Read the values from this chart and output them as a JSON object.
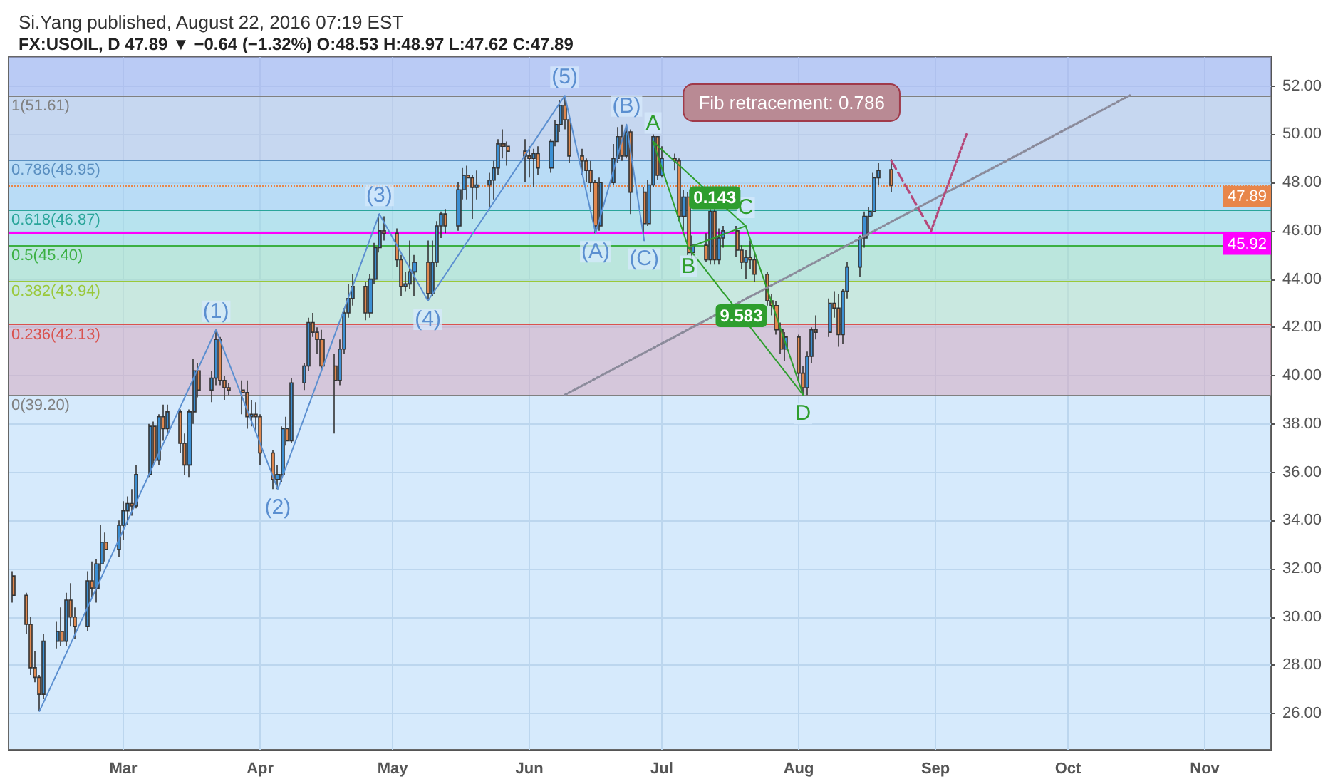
{
  "chart_data": {
    "type": "candlestick",
    "title": "Si.Yang published, August 22, 2016 07:19 EST",
    "subtitle": "FX:USOIL, D 47.89 ▼ −0.64 (−1.32%) O:48.53 H:48.97 L:47.62 C:47.89",
    "xlim": [
      "2016-02-04",
      "2016-11-16"
    ],
    "xticks": [
      {
        "value": "2016-03-01",
        "label": "Mar"
      },
      {
        "value": "2016-04-01",
        "label": "Apr"
      },
      {
        "value": "2016-05-01",
        "label": "May"
      },
      {
        "value": "2016-06-01",
        "label": "Jun"
      },
      {
        "value": "2016-07-01",
        "label": "Jul"
      },
      {
        "value": "2016-08-01",
        "label": "Aug"
      },
      {
        "value": "2016-09-01",
        "label": "Sep"
      },
      {
        "value": "2016-10-01",
        "label": "Oct"
      },
      {
        "value": "2016-11-01",
        "label": "Nov"
      }
    ],
    "ylim": [
      24.5,
      53.2
    ],
    "yticks": [
      {
        "value": 26,
        "label": "26.00"
      },
      {
        "value": 28,
        "label": "28.00"
      },
      {
        "value": 30,
        "label": "30.00"
      },
      {
        "value": 32,
        "label": "32.00"
      },
      {
        "value": 34,
        "label": "34.00"
      },
      {
        "value": 36,
        "label": "36.00"
      },
      {
        "value": 38,
        "label": "38.00"
      },
      {
        "value": 40,
        "label": "40.00"
      },
      {
        "value": 42,
        "label": "42.00"
      },
      {
        "value": 44,
        "label": "44.00"
      },
      {
        "value": 46,
        "label": "46.00"
      },
      {
        "value": 48,
        "label": "48.00"
      },
      {
        "value": 50,
        "label": "50.00"
      },
      {
        "value": 52,
        "label": "52.00"
      }
    ],
    "grid": true,
    "series": [
      {
        "x": [
          "2016-02-05",
          "2016-02-08",
          "2016-02-09",
          "2016-02-10",
          "2016-02-11",
          "2016-02-12",
          "2016-02-15",
          "2016-02-16",
          "2016-02-17",
          "2016-02-18",
          "2016-02-19",
          "2016-02-22",
          "2016-02-23",
          "2016-02-24",
          "2016-02-25",
          "2016-02-26",
          "2016-02-29",
          "2016-03-01",
          "2016-03-02",
          "2016-03-03",
          "2016-03-04",
          "2016-03-07",
          "2016-03-08",
          "2016-03-09",
          "2016-03-10",
          "2016-03-11",
          "2016-03-14",
          "2016-03-15",
          "2016-03-16",
          "2016-03-17",
          "2016-03-18",
          "2016-03-21",
          "2016-03-22",
          "2016-03-23",
          "2016-03-24",
          "2016-03-25",
          "2016-03-28",
          "2016-03-29",
          "2016-03-30",
          "2016-03-31",
          "2016-04-01",
          "2016-04-04",
          "2016-04-05",
          "2016-04-06",
          "2016-04-07",
          "2016-04-08",
          "2016-04-11",
          "2016-04-12",
          "2016-04-13",
          "2016-04-14",
          "2016-04-15",
          "2016-04-18",
          "2016-04-19",
          "2016-04-20",
          "2016-04-21",
          "2016-04-22",
          "2016-04-25",
          "2016-04-26",
          "2016-04-27",
          "2016-04-28",
          "2016-04-29",
          "2016-05-02",
          "2016-05-03",
          "2016-05-04",
          "2016-05-05",
          "2016-05-06",
          "2016-05-09",
          "2016-05-10",
          "2016-05-11",
          "2016-05-12",
          "2016-05-13",
          "2016-05-16",
          "2016-05-17",
          "2016-05-18",
          "2016-05-19",
          "2016-05-20",
          "2016-05-23",
          "2016-05-24",
          "2016-05-25",
          "2016-05-26",
          "2016-05-27",
          "2016-05-31",
          "2016-06-01",
          "2016-06-02",
          "2016-06-03",
          "2016-06-06",
          "2016-06-07",
          "2016-06-08",
          "2016-06-09",
          "2016-06-10",
          "2016-06-13",
          "2016-06-14",
          "2016-06-15",
          "2016-06-16",
          "2016-06-17",
          "2016-06-20",
          "2016-06-21",
          "2016-06-22",
          "2016-06-23",
          "2016-06-24",
          "2016-06-27",
          "2016-06-28",
          "2016-06-29",
          "2016-06-30",
          "2016-07-01",
          "2016-07-04",
          "2016-07-05",
          "2016-07-06",
          "2016-07-07",
          "2016-07-08",
          "2016-07-11",
          "2016-07-12",
          "2016-07-13",
          "2016-07-14",
          "2016-07-15",
          "2016-07-18",
          "2016-07-19",
          "2016-07-20",
          "2016-07-21",
          "2016-07-22",
          "2016-07-25",
          "2016-07-26",
          "2016-07-27",
          "2016-07-28",
          "2016-07-29",
          "2016-08-01",
          "2016-08-02",
          "2016-08-03",
          "2016-08-04",
          "2016-08-05",
          "2016-08-08",
          "2016-08-09",
          "2016-08-10",
          "2016-08-11",
          "2016-08-12",
          "2016-08-15",
          "2016-08-16",
          "2016-08-17",
          "2016-08-18",
          "2016-08-19",
          "2016-08-22"
        ],
        "ohlc": [
          [
            31.7,
            31.9,
            30.6,
            30.9
          ],
          [
            30.9,
            31.0,
            29.3,
            29.7
          ],
          [
            29.7,
            30.0,
            27.6,
            27.9
          ],
          [
            27.9,
            28.6,
            27.3,
            27.5
          ],
          [
            27.5,
            27.6,
            26.1,
            26.8
          ],
          [
            26.8,
            29.3,
            26.6,
            29.0
          ],
          [
            29.0,
            29.8,
            28.7,
            29.4
          ],
          [
            29.4,
            30.4,
            28.8,
            29.0
          ],
          [
            29.0,
            31.0,
            28.8,
            30.7
          ],
          [
            30.7,
            31.4,
            29.6,
            30.0
          ],
          [
            30.0,
            30.4,
            29.1,
            29.6
          ],
          [
            29.6,
            31.9,
            29.4,
            31.5
          ],
          [
            31.5,
            32.3,
            30.8,
            31.2
          ],
          [
            31.2,
            32.4,
            30.6,
            32.2
          ],
          [
            32.2,
            33.8,
            31.9,
            33.1
          ],
          [
            33.1,
            33.5,
            32.3,
            32.8
          ],
          [
            32.8,
            34.0,
            32.5,
            33.8
          ],
          [
            33.8,
            34.8,
            33.2,
            34.4
          ],
          [
            34.4,
            35.0,
            33.8,
            34.7
          ],
          [
            34.7,
            35.3,
            34.2,
            34.6
          ],
          [
            34.6,
            36.3,
            34.5,
            35.9
          ],
          [
            35.9,
            38.0,
            35.8,
            37.9
          ],
          [
            37.9,
            38.1,
            36.3,
            36.5
          ],
          [
            36.5,
            38.4,
            36.3,
            38.3
          ],
          [
            38.3,
            38.8,
            37.3,
            37.8
          ],
          [
            37.8,
            38.8,
            37.5,
            38.5
          ],
          [
            38.5,
            38.6,
            36.8,
            37.2
          ],
          [
            37.2,
            37.6,
            35.9,
            36.3
          ],
          [
            36.3,
            38.6,
            35.8,
            38.5
          ],
          [
            38.5,
            40.7,
            38.0,
            40.2
          ],
          [
            40.2,
            40.5,
            39.1,
            39.4
          ],
          [
            39.4,
            40.2,
            38.9,
            39.9
          ],
          [
            39.9,
            41.9,
            39.6,
            41.5
          ],
          [
            41.5,
            41.6,
            39.6,
            39.8
          ],
          [
            39.8,
            40.0,
            39.0,
            39.5
          ],
          [
            39.5,
            39.7,
            39.2,
            39.4
          ],
          [
            39.4,
            39.8,
            38.4,
            39.3
          ],
          [
            39.3,
            39.8,
            37.8,
            38.3
          ],
          [
            38.3,
            39.0,
            37.9,
            38.4
          ],
          [
            38.4,
            38.9,
            37.7,
            38.3
          ],
          [
            38.3,
            38.4,
            36.3,
            36.8
          ],
          [
            36.8,
            36.9,
            35.3,
            35.7
          ],
          [
            35.7,
            36.3,
            35.3,
            35.9
          ],
          [
            35.9,
            37.9,
            35.6,
            37.8
          ],
          [
            37.8,
            38.3,
            37.1,
            37.3
          ],
          [
            37.3,
            39.9,
            37.2,
            39.7
          ],
          [
            39.7,
            40.5,
            39.4,
            40.4
          ],
          [
            40.4,
            42.4,
            40.2,
            42.2
          ],
          [
            42.2,
            42.6,
            41.6,
            41.8
          ],
          [
            41.8,
            42.0,
            40.9,
            41.5
          ],
          [
            41.5,
            41.9,
            40.2,
            40.4
          ],
          [
            40.4,
            40.9,
            37.6,
            39.8
          ],
          [
            39.8,
            41.5,
            39.6,
            41.1
          ],
          [
            41.1,
            42.8,
            40.9,
            42.6
          ],
          [
            42.6,
            43.8,
            42.4,
            43.2
          ],
          [
            43.2,
            44.2,
            42.9,
            43.7
          ],
          [
            43.7,
            43.9,
            42.3,
            42.6
          ],
          [
            42.6,
            44.2,
            42.4,
            44.0
          ],
          [
            44.0,
            45.5,
            43.8,
            45.3
          ],
          [
            45.3,
            46.7,
            45.1,
            46.0
          ],
          [
            46.0,
            46.6,
            45.6,
            45.9
          ],
          [
            45.9,
            46.1,
            44.5,
            44.8
          ],
          [
            44.8,
            45.0,
            43.3,
            43.7
          ],
          [
            43.7,
            44.3,
            43.5,
            43.8
          ],
          [
            43.8,
            45.6,
            43.6,
            44.3
          ],
          [
            44.3,
            45.0,
            43.3,
            44.7
          ],
          [
            44.7,
            45.6,
            43.1,
            43.4
          ],
          [
            43.4,
            45.6,
            43.3,
            44.7
          ],
          [
            44.7,
            46.4,
            44.5,
            46.2
          ],
          [
            46.2,
            46.8,
            45.7,
            46.7
          ],
          [
            46.7,
            46.9,
            45.9,
            46.2
          ],
          [
            46.2,
            48.0,
            46.0,
            47.7
          ],
          [
            47.7,
            48.6,
            47.3,
            48.3
          ],
          [
            48.3,
            48.7,
            47.3,
            48.2
          ],
          [
            48.2,
            48.3,
            46.5,
            47.8
          ],
          [
            47.8,
            48.5,
            47.3,
            47.9
          ],
          [
            47.9,
            48.4,
            47.0,
            48.1
          ],
          [
            48.1,
            48.9,
            47.3,
            48.6
          ],
          [
            48.6,
            49.8,
            48.3,
            49.6
          ],
          [
            49.6,
            50.2,
            49.0,
            49.5
          ],
          [
            49.5,
            49.7,
            48.7,
            49.3
          ],
          [
            49.3,
            49.8,
            48.0,
            49.1
          ],
          [
            49.1,
            49.5,
            48.2,
            49.0
          ],
          [
            49.0,
            49.4,
            47.8,
            49.2
          ],
          [
            49.2,
            49.5,
            48.3,
            48.6
          ],
          [
            48.6,
            49.8,
            48.4,
            49.7
          ],
          [
            49.7,
            50.6,
            49.5,
            50.4
          ],
          [
            50.4,
            51.4,
            50.1,
            51.2
          ],
          [
            51.2,
            51.6,
            50.2,
            50.6
          ],
          [
            50.6,
            50.6,
            48.8,
            49.1
          ],
          [
            49.1,
            49.4,
            48.3,
            48.9
          ],
          [
            48.9,
            49.0,
            48.0,
            48.5
          ],
          [
            48.5,
            48.9,
            47.6,
            48.0
          ],
          [
            48.0,
            48.1,
            45.9,
            46.2
          ],
          [
            46.2,
            48.2,
            46.0,
            48.0
          ],
          [
            48.0,
            49.6,
            47.9,
            49.0
          ],
          [
            49.0,
            50.3,
            48.8,
            49.9
          ],
          [
            49.9,
            50.4,
            48.9,
            49.1
          ],
          [
            49.1,
            50.3,
            49.0,
            50.1
          ],
          [
            50.1,
            50.2,
            46.7,
            47.6
          ],
          [
            47.6,
            47.8,
            45.6,
            46.3
          ],
          [
            46.3,
            48.1,
            46.2,
            47.9
          ],
          [
            47.9,
            50.0,
            47.8,
            49.9
          ],
          [
            49.9,
            49.9,
            48.1,
            48.3
          ],
          [
            48.3,
            49.5,
            48.2,
            49.0
          ],
          [
            49.0,
            49.2,
            48.5,
            48.9
          ],
          [
            48.9,
            49.0,
            46.4,
            46.6
          ],
          [
            46.6,
            47.7,
            46.0,
            47.4
          ],
          [
            47.4,
            47.6,
            45.0,
            45.1
          ],
          [
            45.1,
            45.8,
            44.8,
            45.4
          ],
          [
            45.4,
            45.9,
            44.7,
            44.8
          ],
          [
            44.8,
            46.9,
            44.6,
            46.8
          ],
          [
            46.8,
            46.9,
            44.6,
            44.8
          ],
          [
            44.8,
            46.1,
            44.6,
            45.7
          ],
          [
            45.7,
            46.2,
            45.3,
            46.0
          ],
          [
            46.0,
            46.2,
            44.9,
            45.2
          ],
          [
            45.2,
            45.4,
            44.4,
            44.7
          ],
          [
            44.7,
            45.2,
            44.0,
            44.9
          ],
          [
            44.9,
            45.6,
            44.4,
            44.8
          ],
          [
            44.8,
            45.1,
            43.9,
            44.2
          ],
          [
            44.2,
            44.3,
            42.9,
            43.1
          ],
          [
            43.1,
            43.4,
            42.5,
            42.9
          ],
          [
            42.9,
            43.1,
            41.7,
            41.9
          ],
          [
            41.9,
            42.2,
            40.9,
            41.1
          ],
          [
            41.1,
            41.8,
            40.6,
            41.6
          ],
          [
            41.6,
            41.7,
            39.8,
            40.1
          ],
          [
            40.1,
            40.4,
            39.2,
            39.5
          ],
          [
            39.5,
            41.0,
            39.2,
            40.8
          ],
          [
            40.8,
            42.0,
            40.5,
            41.9
          ],
          [
            41.9,
            42.5,
            41.5,
            41.8
          ],
          [
            41.8,
            43.2,
            41.6,
            43.0
          ],
          [
            43.0,
            43.5,
            42.4,
            42.8
          ],
          [
            42.8,
            43.4,
            41.2,
            41.7
          ],
          [
            41.7,
            43.6,
            41.3,
            43.5
          ],
          [
            43.5,
            44.7,
            43.2,
            44.5
          ],
          [
            44.5,
            45.8,
            44.1,
            45.7
          ],
          [
            45.7,
            46.8,
            45.3,
            46.6
          ],
          [
            46.6,
            47.0,
            45.8,
            46.8
          ],
          [
            46.8,
            48.4,
            46.6,
            48.2
          ],
          [
            48.2,
            48.8,
            47.9,
            48.5
          ],
          [
            48.53,
            48.97,
            47.62,
            47.89
          ]
        ],
        "colors": [
          "#e0884f",
          "#e0884f",
          "#e0884f",
          "#e0884f",
          "#e0884f",
          "#3c8fd3",
          "#3c8fd3",
          "#e0884f",
          "#3c8fd3",
          "#e0884f",
          "#e0884f",
          "#3c8fd3",
          "#e0884f",
          "#3c8fd3",
          "#3c8fd3",
          "#e0884f",
          "#3c8fd3",
          "#3c8fd3",
          "#3c8fd3",
          "#e0884f",
          "#3c8fd3",
          "#3c8fd3",
          "#e0884f",
          "#3c8fd3",
          "#e0884f",
          "#3c8fd3",
          "#e0884f",
          "#e0884f",
          "#3c8fd3",
          "#3c8fd3",
          "#e0884f",
          "#3c8fd3",
          "#3c8fd3",
          "#e0884f",
          "#e0884f",
          "#e0884f",
          "#e0884f",
          "#e0884f",
          "#3c8fd3",
          "#e0884f",
          "#e0884f",
          "#e0884f",
          "#3c8fd3",
          "#3c8fd3",
          "#e0884f",
          "#3c8fd3",
          "#3c8fd3",
          "#3c8fd3",
          "#e0884f",
          "#e0884f",
          "#e0884f",
          "#e0884f",
          "#3c8fd3",
          "#3c8fd3",
          "#3c8fd3",
          "#3c8fd3",
          "#e0884f",
          "#3c8fd3",
          "#3c8fd3",
          "#3c8fd3",
          "#e0884f",
          "#e0884f",
          "#e0884f",
          "#3c8fd3",
          "#3c8fd3",
          "#3c8fd3",
          "#e0884f",
          "#3c8fd3",
          "#3c8fd3",
          "#3c8fd3",
          "#e0884f",
          "#3c8fd3",
          "#3c8fd3",
          "#e0884f",
          "#e0884f",
          "#3c8fd3",
          "#3c8fd3",
          "#3c8fd3",
          "#3c8fd3",
          "#e0884f",
          "#e0884f",
          "#e0884f",
          "#e0884f",
          "#3c8fd3",
          "#e0884f",
          "#3c8fd3",
          "#3c8fd3",
          "#3c8fd3",
          "#e0884f",
          "#e0884f",
          "#e0884f",
          "#e0884f",
          "#e0884f",
          "#e0884f",
          "#3c8fd3",
          "#3c8fd3",
          "#3c8fd3",
          "#e0884f",
          "#3c8fd3",
          "#e0884f",
          "#e0884f",
          "#3c8fd3",
          "#3c8fd3",
          "#e0884f",
          "#3c8fd3",
          "#e0884f",
          "#e0884f",
          "#3c8fd3",
          "#e0884f",
          "#3c8fd3",
          "#e0884f",
          "#3c8fd3",
          "#e0884f",
          "#3c8fd3",
          "#3c8fd3",
          "#e0884f",
          "#e0884f",
          "#3c8fd3",
          "#e0884f",
          "#e0884f",
          "#e0884f",
          "#e0884f",
          "#e0884f",
          "#e0884f",
          "#3c8fd3",
          "#e0884f",
          "#e0884f",
          "#3c8fd3",
          "#3c8fd3",
          "#e0884f",
          "#3c8fd3",
          "#e0884f",
          "#e0884f",
          "#3c8fd3",
          "#3c8fd3",
          "#3c8fd3",
          "#3c8fd3",
          "#3c8fd3",
          "#3c8fd3",
          "#3c8fd3",
          "#e0884f"
        ]
      },
      {
        "type": "line",
        "color": "#5b8fd0",
        "line_style": "solid",
        "marker": "none",
        "x": [
          "2016-02-11",
          "2016-03-22",
          "2016-04-05",
          "2016-04-28",
          "2016-05-09",
          "2016-06-09",
          "2016-06-16",
          "2016-06-23",
          "2016-06-27"
        ],
        "values": [
          26.1,
          41.9,
          35.3,
          46.7,
          43.1,
          51.6,
          45.9,
          50.4,
          45.6
        ]
      },
      {
        "type": "line",
        "color": "#2e9e2e",
        "line_style": "solid",
        "marker": "none",
        "x": [
          "2016-06-29",
          "2016-07-07",
          "2016-07-20",
          "2016-08-02"
        ],
        "values": [
          49.7,
          45.3,
          46.2,
          39.2
        ]
      },
      {
        "type": "line",
        "color": "#2e9e2e",
        "line_style": "solid",
        "marker": "none",
        "x": [
          "2016-06-29",
          "2016-07-20"
        ],
        "values": [
          49.7,
          46.2
        ]
      },
      {
        "type": "line",
        "color": "#2e9e2e",
        "line_style": "solid",
        "marker": "none",
        "x": [
          "2016-07-07",
          "2016-08-02"
        ],
        "values": [
          45.3,
          39.2
        ]
      },
      {
        "type": "line",
        "color": "#8a8a9a",
        "line_style": "dotted",
        "marker": "none",
        "x": [
          "2016-06-09",
          "2016-10-15"
        ],
        "values": [
          39.2,
          51.61
        ]
      },
      {
        "type": "line",
        "color": "#b5487a",
        "line_style": "dashed",
        "marker": "none",
        "x": [
          "2016-08-22",
          "2016-08-31"
        ],
        "values": [
          48.9,
          46.0
        ]
      },
      {
        "type": "line",
        "color": "#b5487a",
        "line_style": "dotted",
        "marker": "none",
        "x": [
          "2016-08-31",
          "2016-09-08"
        ],
        "values": [
          46.0,
          50.0
        ]
      }
    ],
    "bands": [
      {
        "axis": "y",
        "from": 39.2,
        "to": 42.13,
        "color": "#d6a9c0"
      },
      {
        "axis": "y",
        "from": 42.13,
        "to": 43.94,
        "color": "#bfe6c8"
      },
      {
        "axis": "y",
        "from": 43.94,
        "to": 45.4,
        "color": "#a6e2c2"
      },
      {
        "axis": "y",
        "from": 45.4,
        "to": 46.87,
        "color": "#9fdde2"
      },
      {
        "axis": "y",
        "from": 46.87,
        "to": 48.95,
        "color": "#a3d0f0"
      },
      {
        "axis": "y",
        "from": 48.95,
        "to": 51.61,
        "color": "#b9c6e6"
      },
      {
        "axis": "y",
        "from": 51.61,
        "to": 53.2,
        "color": "#a4b0ee"
      }
    ],
    "ref_lines": [
      {
        "axis": "y",
        "value": 51.61,
        "label": "1(51.61)",
        "color": "#808080",
        "line_style": "solid"
      },
      {
        "axis": "y",
        "value": 48.95,
        "label": "0.786(48.95)",
        "color": "#5a8fc0",
        "line_style": "solid"
      },
      {
        "axis": "y",
        "value": 46.87,
        "label": "0.618(46.87)",
        "color": "#2aa59a",
        "line_style": "solid"
      },
      {
        "axis": "y",
        "value": 45.4,
        "label": "0.5(45.40)",
        "color": "#3cb043",
        "line_style": "solid"
      },
      {
        "axis": "y",
        "value": 43.94,
        "label": "0.382(43.94)",
        "color": "#9ac83a",
        "line_style": "solid"
      },
      {
        "axis": "y",
        "value": 42.13,
        "label": "0.236(42.13)",
        "color": "#d9534f",
        "line_style": "solid"
      },
      {
        "axis": "y",
        "value": 39.2,
        "label": "0(39.20)",
        "color": "#808080",
        "line_style": "solid"
      },
      {
        "axis": "y",
        "value": 47.89,
        "label": "47.89",
        "color": "#e8864a",
        "line_style": "dotted"
      },
      {
        "axis": "y",
        "value": 45.92,
        "label": "45.92",
        "color": "#ff00ff",
        "line_style": "solid"
      }
    ],
    "annotations": [
      {
        "text": "(1)",
        "x": "2016-03-22",
        "y": 41.9
      },
      {
        "text": "(2)",
        "x": "2016-04-05",
        "y": 35.3
      },
      {
        "text": "(3)",
        "x": "2016-04-28",
        "y": 46.7
      },
      {
        "text": "(4)",
        "x": "2016-05-09",
        "y": 43.1
      },
      {
        "text": "(5)",
        "x": "2016-06-09",
        "y": 51.6
      },
      {
        "text": "(A)",
        "x": "2016-06-16",
        "y": 45.9
      },
      {
        "text": "(B)",
        "x": "2016-06-23",
        "y": 50.4
      },
      {
        "text": "(C)",
        "x": "2016-06-27",
        "y": 45.6
      },
      {
        "text": "A",
        "x": "2016-06-29",
        "y": 49.7
      },
      {
        "text": "B",
        "x": "2016-07-07",
        "y": 45.3
      },
      {
        "text": "C",
        "x": "2016-07-20",
        "y": 46.2
      },
      {
        "text": "D",
        "x": "2016-08-02",
        "y": 39.2
      },
      {
        "text": "0.143",
        "x": "2016-07-13",
        "y": 47.37
      },
      {
        "text": "9.583",
        "x": "2016-07-19",
        "y": 42.48
      },
      {
        "text": "Fib retracement: 0.786",
        "x": "2016-08-22",
        "y": 48.95
      }
    ]
  }
}
